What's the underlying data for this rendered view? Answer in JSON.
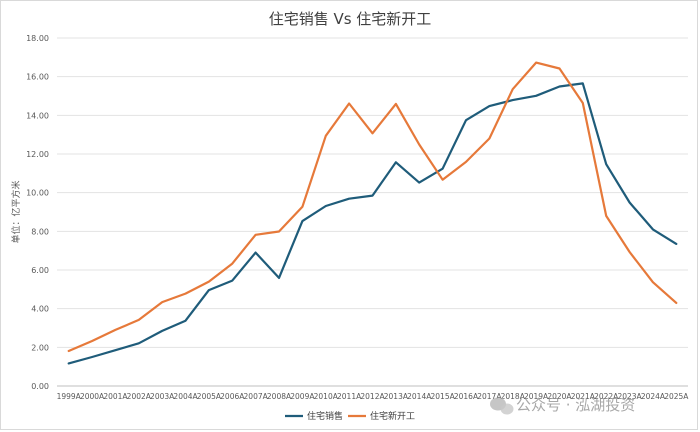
{
  "chart_data": {
    "type": "line",
    "title": "住宅销售 Vs 住宅新开工",
    "xlabel": "",
    "ylabel": "单位：亿平方米",
    "ylim": [
      0,
      18
    ],
    "yticks": [
      "0.00",
      "2.00",
      "4.00",
      "6.00",
      "8.00",
      "10.00",
      "12.00",
      "14.00",
      "16.00",
      "18.00"
    ],
    "grid": true,
    "legend_position": "bottom",
    "categories": [
      "1999A",
      "2000A",
      "2001A",
      "2002A",
      "2003A",
      "2004A",
      "2005A",
      "2006A",
      "2007A",
      "2008A",
      "2009A",
      "2010A",
      "2011A",
      "2012A",
      "2013A",
      "2014A",
      "2015A",
      "2016A",
      "2017A",
      "2018A",
      "2019A",
      "2020A",
      "2021A",
      "2022A",
      "2023A",
      "2024A",
      "2025A"
    ],
    "series": [
      {
        "name": "住宅销售",
        "color": "#1f5c7a",
        "values": [
          1.17,
          1.5,
          1.85,
          2.21,
          2.85,
          3.38,
          4.96,
          5.45,
          6.9,
          5.59,
          8.53,
          9.31,
          9.69,
          9.85,
          11.57,
          10.52,
          11.24,
          13.75,
          14.48,
          14.79,
          15.01,
          15.49,
          15.65,
          11.47,
          9.49,
          8.1,
          7.35
        ]
      },
      {
        "name": "住宅新开工",
        "color": "#e6793a",
        "values": [
          1.81,
          2.33,
          2.9,
          3.42,
          4.34,
          4.78,
          5.4,
          6.33,
          7.82,
          7.99,
          9.27,
          12.94,
          14.61,
          13.07,
          14.59,
          12.49,
          10.67,
          11.59,
          12.8,
          15.35,
          16.73,
          16.42,
          14.64,
          8.8,
          6.93,
          5.37,
          4.3
        ]
      }
    ]
  },
  "watermark": {
    "text": "公众号 · 泓湖投资",
    "icon": "wechat-icon"
  }
}
